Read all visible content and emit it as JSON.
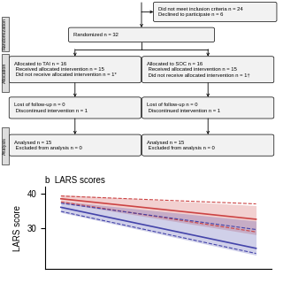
{
  "chart_data": [
    {
      "type": "flowchart",
      "boxes": [
        "Did not meet inclusion criteria n = 24\nDeclined to participate n = 6",
        "Randomized n = 32",
        "Allocated to TAI n = 16\n Received allocated intervention n = 15\n Did not receive allocated intervention n = 1*",
        "Allocated to SOC n = 16\n Received allocated intervention n = 15\n Did not receive allocated intervention n = 1†",
        "Lost of follow-up n = 0\n Discontinued intervention n = 1",
        "Lost of follow-up n = 0\n Discontinued intervention n = 1",
        "Analysed n = 15\n Excluded from analysis n = 0",
        "Analysed n = 15\n Excluded from analysis n = 0"
      ],
      "side_labels": [
        "Randomization",
        "Allocation",
        "Analysis"
      ]
    },
    {
      "type": "line",
      "title": "b  LARS scores",
      "y_label": "LARS score",
      "categories": [
        null,
        null
      ],
      "series": [
        {
          "color": "#cc4444",
          "line_style": "solid",
          "values": [
            38.5,
            32.5
          ],
          "lower": [
            37.3,
            28.0
          ],
          "upper": [
            39.7,
            36.5
          ]
        },
        {
          "color": "#cc4444",
          "line_style": "dashed",
          "values": [
            39.3,
            37.0
          ]
        },
        {
          "color": "#cc4444",
          "line_style": "dashed",
          "values": [
            37.6,
            28.8
          ]
        },
        {
          "color": "#4444aa",
          "line_style": "solid",
          "values": [
            36.0,
            24.0
          ],
          "lower": [
            34.5,
            22.0
          ],
          "upper": [
            37.8,
            32.0
          ]
        },
        {
          "color": "#4444aa",
          "line_style": "dashed",
          "values": [
            37.2,
            29.5
          ]
        },
        {
          "color": "#4444aa",
          "line_style": "dashed",
          "values": [
            34.8,
            22.5
          ]
        }
      ],
      "ylim": [
        18,
        42
      ],
      "yticks": [
        30,
        40
      ],
      "tick_labels": "y"
    }
  ]
}
